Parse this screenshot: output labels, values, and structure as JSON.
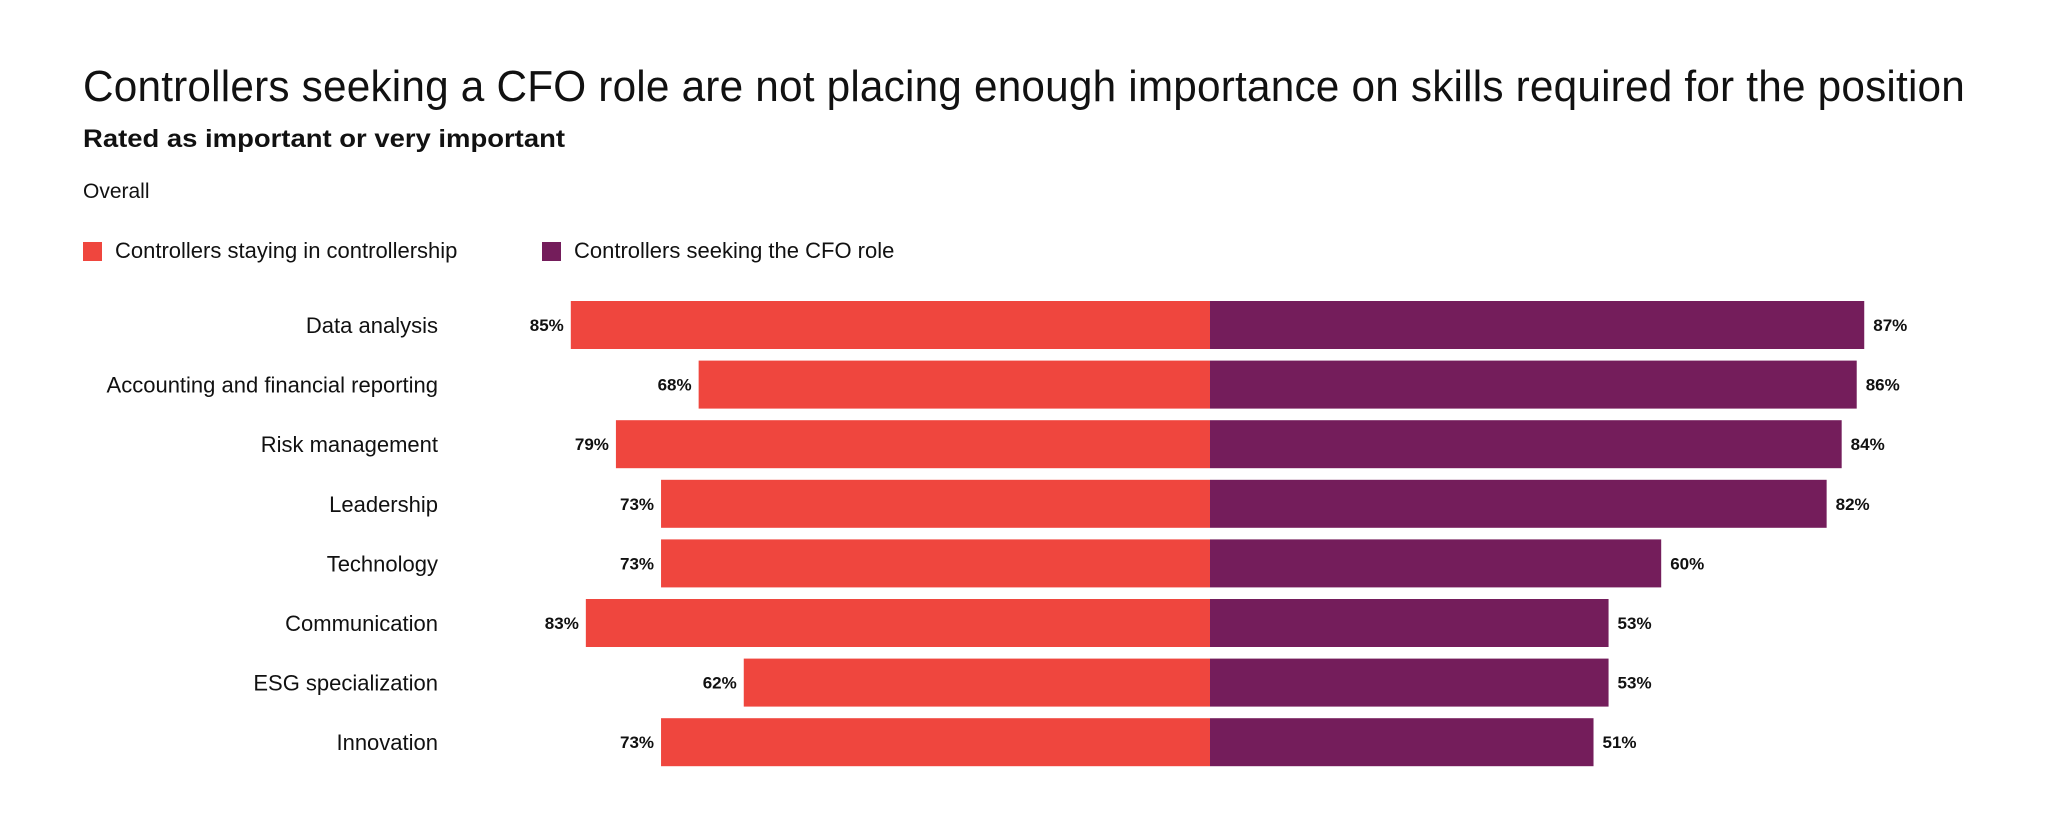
{
  "header": {
    "title": "Controllers seeking a CFO role are not placing enough importance on skills required for the position",
    "subtitle": "Rated as important or very important",
    "filter_label": "Overall"
  },
  "legend": [
    {
      "label": "Controllers staying in controllership",
      "color": "#EF463E"
    },
    {
      "label": "Controllers seeking the CFO role",
      "color": "#741D5B"
    }
  ],
  "chart_data": {
    "type": "bar",
    "orientation": "horizontal-diverging",
    "title": "Controllers seeking a CFO role are not placing enough importance on skills required for the position",
    "subtitle": "Rated as important or very important",
    "xlabel": "",
    "ylabel": "",
    "xlim": [
      0,
      100
    ],
    "grid": false,
    "legend_position": "top-left",
    "categories": [
      "Data analysis",
      "Accounting and financial reporting",
      "Risk management",
      "Leadership",
      "Technology",
      "Communication",
      "ESG specialization",
      "Innovation"
    ],
    "series": [
      {
        "name": "Controllers staying in controllership",
        "color": "#EF463E",
        "side": "left",
        "values": [
          85,
          68,
          79,
          73,
          73,
          83,
          62,
          73
        ]
      },
      {
        "name": "Controllers seeking the CFO role",
        "color": "#741D5B",
        "side": "right",
        "values": [
          87,
          86,
          84,
          82,
          60,
          53,
          53,
          51
        ]
      }
    ],
    "value_suffix": "%"
  }
}
